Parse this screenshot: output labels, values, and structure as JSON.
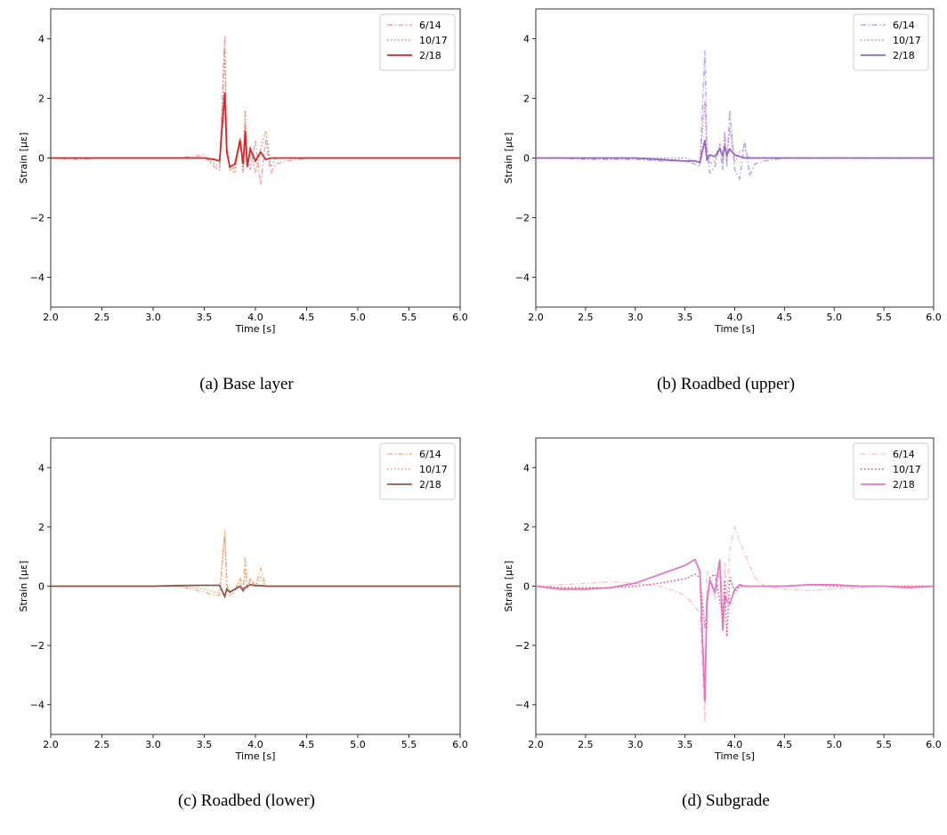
{
  "chart_data": [
    {
      "type": "line",
      "caption": "(a) Base layer",
      "x_label": "Time [s]",
      "y_label": "Strain [με]",
      "legend": "upper right",
      "x": [
        2.0,
        2.25,
        2.5,
        2.75,
        3.0,
        3.25,
        3.5,
        3.6,
        3.65,
        3.7,
        3.72,
        3.75,
        3.8,
        3.85,
        3.88,
        3.9,
        3.92,
        3.95,
        4.0,
        4.05,
        4.1,
        4.15,
        4.2,
        4.3,
        4.5,
        4.75,
        5.0,
        5.25,
        5.5,
        5.75,
        6.0
      ],
      "xlim": [
        2,
        6
      ],
      "ylim": [
        -5,
        5
      ],
      "xticks": [
        {
          "value": 2,
          "label": "2.0"
        },
        {
          "value": 2.5,
          "label": "2.5"
        },
        {
          "value": 3,
          "label": "3.0"
        },
        {
          "value": 3.5,
          "label": "3.5"
        },
        {
          "value": 4,
          "label": "4.0"
        },
        {
          "value": 4.5,
          "label": "4.5"
        },
        {
          "value": 5,
          "label": "5.0"
        },
        {
          "value": 5.5,
          "label": "5.5"
        },
        {
          "value": 6,
          "label": "6.0"
        }
      ],
      "yticks": [
        {
          "value": -4,
          "label": "−4"
        },
        {
          "value": -2,
          "label": "−2"
        },
        0,
        2,
        4
      ],
      "series": [
        {
          "name": "6/14",
          "color": "#f4a0b0",
          "dash": "dashdot",
          "values": [
            0,
            -0.05,
            0,
            0,
            0,
            0,
            0.1,
            -0.3,
            -0.4,
            4.1,
            0.5,
            -0.4,
            -0.3,
            0.5,
            -0.5,
            1.2,
            0,
            -0.4,
            0.6,
            -0.9,
            0.6,
            -0.5,
            -0.2,
            -0.1,
            0,
            0,
            0,
            0,
            0,
            0,
            0
          ]
        },
        {
          "name": "10/17",
          "color": "#e8845a",
          "dash": "dotted",
          "values": [
            0,
            0,
            0,
            0,
            0,
            0,
            0,
            -0.2,
            -0.3,
            3.7,
            0.3,
            -0.4,
            -0.5,
            0.7,
            -0.4,
            1.6,
            -0.3,
            0.4,
            -0.5,
            0.3,
            0.9,
            -0.3,
            0,
            0,
            0,
            0,
            0,
            0,
            0,
            0,
            0
          ]
        },
        {
          "name": "2/18",
          "color": "#d62728",
          "dash": "solid",
          "values": [
            0,
            0,
            0,
            0,
            0,
            0,
            0,
            -0.05,
            -0.1,
            2.2,
            0.2,
            -0.3,
            -0.2,
            0.6,
            -0.2,
            0.9,
            -0.3,
            0.3,
            -0.1,
            0.2,
            -0.05,
            0,
            0,
            0,
            0,
            0,
            0,
            0,
            0,
            0,
            0
          ]
        }
      ]
    },
    {
      "type": "line",
      "caption": "(b) Roadbed (upper)",
      "x_label": "Time [s]",
      "y_label": "Strain [με]",
      "legend": "upper right",
      "x": [
        2.0,
        2.25,
        2.5,
        2.75,
        3.0,
        3.25,
        3.5,
        3.6,
        3.65,
        3.7,
        3.72,
        3.75,
        3.8,
        3.85,
        3.88,
        3.9,
        3.92,
        3.95,
        4.0,
        4.05,
        4.1,
        4.15,
        4.2,
        4.3,
        4.5,
        4.75,
        5.0,
        5.25,
        5.5,
        5.75,
        6.0
      ],
      "xlim": [
        2,
        6
      ],
      "ylim": [
        -5,
        5
      ],
      "xticks": [
        {
          "value": 2,
          "label": "2.0"
        },
        {
          "value": 2.5,
          "label": "2.5"
        },
        {
          "value": 3,
          "label": "3.0"
        },
        {
          "value": 3.5,
          "label": "3.5"
        },
        {
          "value": 4,
          "label": "4.0"
        },
        {
          "value": 4.5,
          "label": "4.5"
        },
        {
          "value": 5,
          "label": "5.0"
        },
        {
          "value": 5.5,
          "label": "5.5"
        },
        {
          "value": 6,
          "label": "6.0"
        }
      ],
      "yticks": [
        {
          "value": -4,
          "label": "−4"
        },
        {
          "value": -2,
          "label": "−2"
        },
        0,
        2,
        4
      ],
      "series": [
        {
          "name": "6/14",
          "color": "#b9a5e8",
          "dash": "dashdot",
          "values": [
            0,
            0,
            -0.05,
            -0.05,
            -0.05,
            -0.1,
            -0.1,
            -0.2,
            -0.3,
            3.6,
            0.2,
            -0.5,
            -0.3,
            0.4,
            -0.4,
            0.9,
            -0.3,
            1.6,
            -0.4,
            -0.7,
            0.6,
            -0.6,
            -0.2,
            -0.1,
            0,
            0,
            0,
            0,
            0,
            0,
            0
          ]
        },
        {
          "name": "10/17",
          "color": "#c77ddb",
          "dash": "dotted",
          "values": [
            0,
            0,
            0,
            0,
            0,
            0,
            0,
            -0.1,
            -0.1,
            1.9,
            0.3,
            -0.2,
            -0.1,
            0.5,
            -0.2,
            0.7,
            -0.1,
            1.0,
            -0.1,
            0.2,
            0.3,
            0,
            0,
            0,
            0,
            0,
            0,
            0,
            0,
            0,
            0
          ]
        },
        {
          "name": "2/18",
          "color": "#9467bd",
          "dash": "solid",
          "values": [
            0,
            0,
            0,
            0,
            0,
            -0.05,
            -0.1,
            -0.1,
            -0.15,
            0.6,
            -0.05,
            0.1,
            0.05,
            0.3,
            0.1,
            0.4,
            0.1,
            0.3,
            0.1,
            0.05,
            0,
            0,
            0,
            0,
            0,
            0,
            0,
            0,
            0,
            0,
            0
          ]
        }
      ]
    },
    {
      "type": "line",
      "caption": "(c) Roadbed (lower)",
      "x_label": "Time [s]",
      "y_label": "Strain [με]",
      "legend": "upper right",
      "x": [
        2.0,
        2.25,
        2.5,
        2.75,
        3.0,
        3.25,
        3.5,
        3.6,
        3.65,
        3.7,
        3.72,
        3.75,
        3.8,
        3.85,
        3.88,
        3.9,
        3.92,
        3.95,
        4.0,
        4.05,
        4.1,
        4.15,
        4.2,
        4.3,
        4.5,
        4.75,
        5.0,
        5.25,
        5.5,
        5.75,
        6.0
      ],
      "xlim": [
        2,
        6
      ],
      "ylim": [
        -5,
        5
      ],
      "xticks": [
        {
          "value": 2,
          "label": "2.0"
        },
        {
          "value": 2.5,
          "label": "2.5"
        },
        {
          "value": 3,
          "label": "3.0"
        },
        {
          "value": 3.5,
          "label": "3.5"
        },
        {
          "value": 4,
          "label": "4.0"
        },
        {
          "value": 4.5,
          "label": "4.5"
        },
        {
          "value": 5,
          "label": "5.0"
        },
        {
          "value": 5.5,
          "label": "5.5"
        },
        {
          "value": 6,
          "label": "6.0"
        }
      ],
      "yticks": [
        {
          "value": -4,
          "label": "−4"
        },
        {
          "value": -2,
          "label": "−2"
        },
        0,
        2,
        4
      ],
      "series": [
        {
          "name": "6/14",
          "color": "#f9b98a",
          "dash": "dashdot",
          "values": [
            0,
            0,
            0,
            0,
            0,
            0,
            -0.2,
            -0.3,
            -0.3,
            1.9,
            0.1,
            -0.3,
            -0.2,
            0.3,
            -0.2,
            1.0,
            -0.1,
            0.3,
            0,
            0.6,
            0,
            0,
            0,
            0,
            0,
            0,
            0,
            0,
            0,
            0,
            0
          ]
        },
        {
          "name": "10/17",
          "color": "#ee9a62",
          "dash": "dotted",
          "values": [
            0,
            0,
            0,
            0,
            0,
            0,
            -0.1,
            -0.2,
            -0.2,
            1.7,
            0,
            -0.2,
            -0.1,
            0.2,
            -0.1,
            0.6,
            -0.1,
            0.2,
            0,
            0.3,
            0,
            0,
            0,
            0,
            0,
            0,
            0,
            0,
            0,
            0,
            0
          ]
        },
        {
          "name": "2/18",
          "color": "#8c564b",
          "dash": "solid",
          "values": [
            0,
            0,
            0,
            0,
            0,
            0.02,
            0.03,
            0.03,
            0.03,
            -0.35,
            -0.1,
            -0.2,
            -0.1,
            0,
            -0.15,
            -0.05,
            0,
            0.05,
            0.02,
            0.02,
            0,
            0,
            0,
            0,
            0,
            0,
            0,
            0,
            0,
            0,
            0
          ]
        }
      ]
    },
    {
      "type": "line",
      "caption": "(d) Subgrade",
      "x_label": "Time [s]",
      "y_label": "Strain [με]",
      "legend": "upper right",
      "x": [
        2.0,
        2.25,
        2.5,
        2.75,
        3.0,
        3.25,
        3.5,
        3.6,
        3.65,
        3.7,
        3.72,
        3.75,
        3.8,
        3.85,
        3.88,
        3.9,
        3.92,
        3.95,
        4.0,
        4.05,
        4.1,
        4.15,
        4.2,
        4.3,
        4.5,
        4.75,
        5.0,
        5.25,
        5.5,
        5.75,
        6.0
      ],
      "xlim": [
        2,
        6
      ],
      "ylim": [
        -5,
        5
      ],
      "xticks": [
        {
          "value": 2,
          "label": "2.0"
        },
        {
          "value": 2.5,
          "label": "2.5"
        },
        {
          "value": 3,
          "label": "3.0"
        },
        {
          "value": 3.5,
          "label": "3.5"
        },
        {
          "value": 4,
          "label": "4.0"
        },
        {
          "value": 4.5,
          "label": "4.5"
        },
        {
          "value": 5,
          "label": "5.0"
        },
        {
          "value": 5.5,
          "label": "5.5"
        },
        {
          "value": 6,
          "label": "6.0"
        }
      ],
      "yticks": [
        {
          "value": -4,
          "label": "−4"
        },
        {
          "value": -2,
          "label": "−2"
        },
        0,
        2,
        4
      ],
      "series": [
        {
          "name": "6/14",
          "color": "#f7c6cf",
          "dash": "dashdot",
          "values": [
            0,
            0.05,
            0.1,
            0.15,
            0.1,
            0,
            -0.3,
            -0.7,
            -0.9,
            -4.6,
            0.5,
            0.3,
            -0.5,
            0.5,
            -1.5,
            0.8,
            -0.5,
            1.2,
            2.0,
            1.5,
            1.1,
            0.7,
            0.3,
            0,
            -0.1,
            -0.15,
            -0.1,
            -0.05,
            0,
            0,
            0
          ]
        },
        {
          "name": "10/17",
          "color": "#e0455a",
          "dash": "dotted",
          "values": [
            0,
            -0.05,
            -0.05,
            -0.05,
            0,
            0.1,
            0.25,
            0.4,
            0.3,
            -1.4,
            -0.8,
            0.3,
            0.4,
            -0.5,
            -1.0,
            0.2,
            -1.7,
            0.3,
            -0.2,
            0,
            0,
            0,
            0,
            0,
            0,
            0.05,
            0,
            0,
            0,
            0,
            0
          ]
        },
        {
          "name": "2/18",
          "color": "#e377c2",
          "dash": "solid",
          "values": [
            0,
            -0.1,
            -0.1,
            -0.05,
            0.1,
            0.4,
            0.7,
            0.9,
            0.5,
            -3.9,
            -0.5,
            0.2,
            -0.2,
            0.9,
            -1.5,
            -0.3,
            -0.5,
            -0.6,
            -0.1,
            0.05,
            0,
            0,
            0,
            0,
            0,
            0.05,
            0.05,
            0,
            0,
            -0.05,
            0
          ]
        }
      ]
    }
  ]
}
